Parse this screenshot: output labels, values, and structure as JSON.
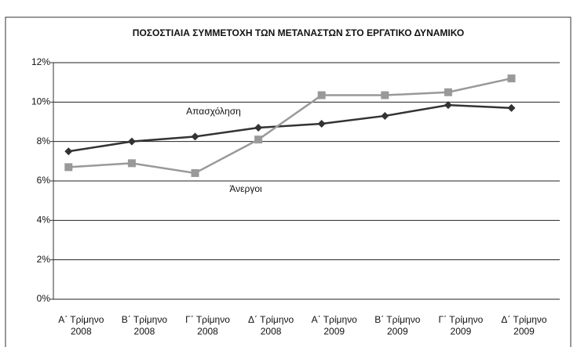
{
  "chart_data": {
    "type": "line",
    "title": "ΠΟΣΟΣΤΙΑΙΑ ΣΥΜΜΕΤΟΧΗ ΤΩΝ ΜΕΤΑΝΑΣΤΩΝ ΣΤΟ ΕΡΓΑΤΙΚΟ ΔΥΝΑΜΙΚΟ",
    "categories": [
      "Α΄ Τρίμηνο 2008",
      "Β΄ Τρίμηνο 2008",
      "Γ΄ Τρίμηνο 2008",
      "Δ΄ Τρίμηνο 2008",
      "Α΄ Τρίμηνο 2009",
      "Β΄ Τρίμηνο 2009",
      "Γ΄ Τρίμηνο 2009",
      "Δ΄ Τρίμηνο 2009"
    ],
    "series": [
      {
        "name": "Απασχόληση",
        "color": "#333333",
        "marker": "diamond",
        "values": [
          7.5,
          8.0,
          8.25,
          8.7,
          8.9,
          9.3,
          9.85,
          9.7
        ]
      },
      {
        "name": "Άνεργοι",
        "color": "#999999",
        "marker": "square",
        "values": [
          6.7,
          6.9,
          6.4,
          8.1,
          10.35,
          10.35,
          10.5,
          11.2
        ]
      }
    ],
    "ylim": [
      0,
      12
    ],
    "yticks": [
      {
        "value": 0,
        "label": "0%"
      },
      {
        "value": 2,
        "label": "2%"
      },
      {
        "value": 4,
        "label": "4%"
      },
      {
        "value": 6,
        "label": "6%"
      },
      {
        "value": 8,
        "label": "8%"
      },
      {
        "value": 10,
        "label": "10%"
      },
      {
        "value": 12,
        "label": "12%"
      }
    ],
    "grid": true
  }
}
